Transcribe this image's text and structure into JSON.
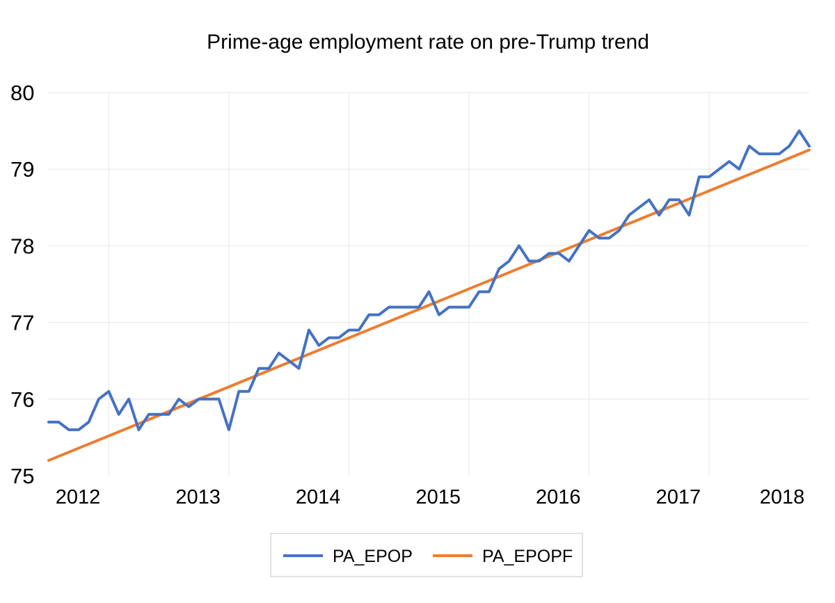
{
  "chart_data": {
    "type": "line",
    "title": "Prime-age employment rate on pre-Trump trend",
    "xlabel": "",
    "ylabel": "",
    "ylim": [
      75,
      80
    ],
    "yticks": [
      "75",
      "76",
      "77",
      "78",
      "79",
      "80"
    ],
    "year_labels": [
      "2012",
      "2013",
      "2014",
      "2015",
      "2016",
      "2017",
      "2018"
    ],
    "legend_position": "bottom-center",
    "series": [
      {
        "name": "PA_EPOP",
        "color": "#4472C4",
        "start": "2012-01",
        "values": [
          75.7,
          75.7,
          75.6,
          75.6,
          75.7,
          76.0,
          76.1,
          75.8,
          76.0,
          75.6,
          75.8,
          75.8,
          75.8,
          76.0,
          75.9,
          76.0,
          76.0,
          76.0,
          75.6,
          76.1,
          76.1,
          76.4,
          76.4,
          76.6,
          76.5,
          76.4,
          76.9,
          76.7,
          76.8,
          76.8,
          76.9,
          76.9,
          77.1,
          77.1,
          77.2,
          77.2,
          77.2,
          77.2,
          77.4,
          77.1,
          77.2,
          77.2,
          77.2,
          77.4,
          77.4,
          77.7,
          77.8,
          78.0,
          77.8,
          77.8,
          77.9,
          77.9,
          77.8,
          78.0,
          78.2,
          78.1,
          78.1,
          78.2,
          78.4,
          78.5,
          78.6,
          78.4,
          78.6,
          78.6,
          78.4,
          78.9,
          78.9,
          79.0,
          79.1,
          79.0,
          79.3,
          79.2,
          79.2,
          79.2,
          79.3,
          79.5,
          79.3
        ]
      },
      {
        "name": "PA_EPOPF",
        "color": "#ED7D31",
        "start": "2012-01",
        "start_value": 75.2,
        "end_value": 79.25
      }
    ]
  }
}
